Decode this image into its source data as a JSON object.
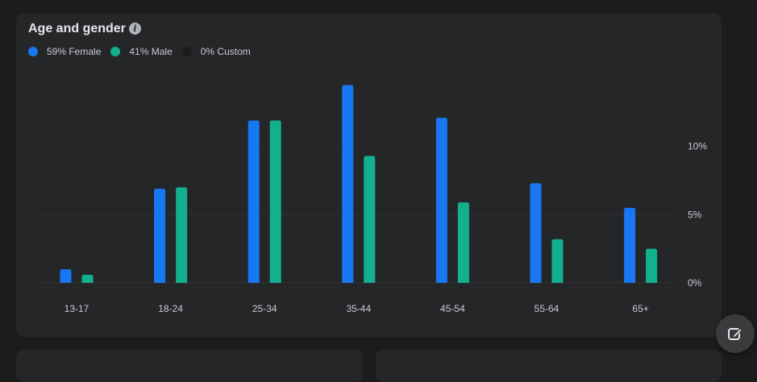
{
  "card": {
    "title": "Age and gender",
    "info_icon": "info-icon"
  },
  "legend": [
    {
      "label": "59% Female",
      "color": "#1877f2"
    },
    {
      "label": "41% Male",
      "color": "#13b08f"
    },
    {
      "label": "0% Custom",
      "color": "#1b1c1e"
    }
  ],
  "fab": {
    "icon": "compose-icon"
  },
  "chart_data": {
    "type": "bar",
    "categories": [
      "13-17",
      "18-24",
      "25-34",
      "35-44",
      "45-54",
      "55-64",
      "65+"
    ],
    "series": [
      {
        "name": "Female",
        "color": "#1877f2",
        "values": [
          1.0,
          6.9,
          11.9,
          14.5,
          12.1,
          7.3,
          5.5
        ]
      },
      {
        "name": "Male",
        "color": "#13b08f",
        "values": [
          0.6,
          7.0,
          11.9,
          9.3,
          5.9,
          3.2,
          2.5
        ]
      },
      {
        "name": "Custom",
        "color": "#1b1c1e",
        "values": [
          0,
          0,
          0,
          0,
          0,
          0,
          0
        ]
      }
    ],
    "yticks": [
      {
        "value": 0,
        "label": "0%"
      },
      {
        "value": 5,
        "label": "5%"
      },
      {
        "value": 10,
        "label": "10%"
      }
    ],
    "ylim": [
      0,
      15
    ],
    "grid": true,
    "legend_position": "top-left"
  }
}
